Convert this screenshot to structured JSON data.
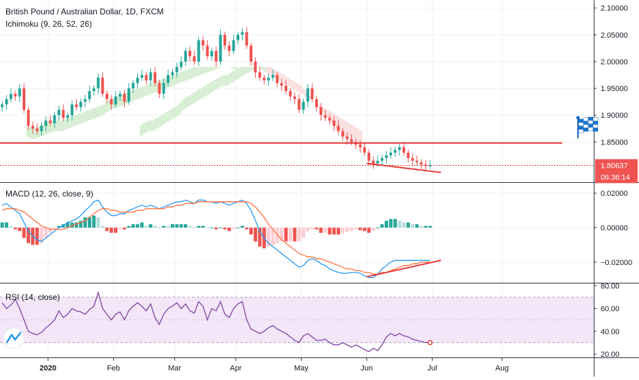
{
  "chart_data": [
    {
      "type": "candlestick",
      "title": "British Pound / Australian Dollar, 1D, FXCM",
      "indicator_label": "Ichimoku (9, 26, 52, 26)",
      "y_ticks": [
        "2.10000",
        "2.05000",
        "2.00000",
        "1.95000",
        "1.90000",
        "1.85000"
      ],
      "y_tick_values": [
        2.1,
        2.05,
        2.0,
        1.95,
        1.9,
        1.85
      ],
      "ylim": [
        1.775,
        2.115
      ],
      "last_price": "1.80637",
      "countdown": "06:36:14",
      "horizontal_line": 1.848,
      "trendline": [
        [
          84,
          1.81
        ],
        [
          101,
          1.793
        ]
      ],
      "x_range": [
        0,
        136
      ],
      "close": [
        1.92,
        1.93,
        1.94,
        1.935,
        1.95,
        1.91,
        1.88,
        1.875,
        1.87,
        1.88,
        1.89,
        1.885,
        1.9,
        1.91,
        1.895,
        1.9,
        1.92,
        1.915,
        1.925,
        1.93,
        1.945,
        1.95,
        1.97,
        1.94,
        1.93,
        1.92,
        1.935,
        1.94,
        1.925,
        1.95,
        1.96,
        1.97,
        1.975,
        1.965,
        1.98,
        1.96,
        1.94,
        1.96,
        1.975,
        1.98,
        1.99,
        2.0,
        2.02,
        2.01,
        2.0,
        2.04,
        2.03,
        2.01,
        2.02,
        2.0,
        2.05,
        2.03,
        2.02,
        2.04,
        2.05,
        2.055,
        2.03,
        2.0,
        1.98,
        1.97,
        1.965,
        1.97,
        1.975,
        1.96,
        1.955,
        1.945,
        1.935,
        1.93,
        1.91,
        1.925,
        1.95,
        1.93,
        1.915,
        1.9,
        1.895,
        1.89,
        1.88,
        1.87,
        1.86,
        1.855,
        1.85,
        1.845,
        1.84,
        1.83,
        1.815,
        1.81,
        1.815,
        1.82,
        1.825,
        1.83,
        1.835,
        1.84,
        1.83,
        1.82,
        1.815,
        1.812,
        1.808,
        1.805,
        1.806
      ],
      "cloud_upper": [
        1.88,
        1.885,
        1.89,
        1.89,
        1.895,
        1.9,
        1.905,
        1.91,
        1.915,
        1.92,
        1.93,
        1.935,
        1.94,
        1.945,
        1.95,
        1.955,
        1.96,
        1.965,
        1.97,
        1.975,
        1.975,
        1.98,
        1.985,
        1.99,
        1.99,
        1.99,
        1.99,
        1.99,
        1.985,
        1.98,
        1.975,
        1.97,
        1.965,
        1.96,
        1.955,
        1.95,
        1.945,
        1.94,
        1.935,
        1.93,
        1.925,
        1.92,
        1.915,
        1.91,
        1.905,
        1.9,
        1.895,
        1.89,
        1.885,
        1.88,
        1.875,
        1.87
      ],
      "cloud_lower": [
        1.86,
        1.865,
        1.87,
        1.87,
        1.875,
        1.88,
        1.885,
        1.89,
        1.895,
        1.9,
        1.91,
        1.915,
        1.92,
        1.925,
        1.93,
        1.935,
        1.94,
        1.945,
        1.95,
        1.955,
        1.955,
        1.96,
        1.965,
        1.97,
        1.975,
        1.98,
        1.985,
        1.99,
        1.99,
        1.99,
        1.99,
        1.985,
        1.98,
        1.975,
        1.97,
        1.965,
        1.96,
        1.955,
        1.945,
        1.935,
        1.925,
        1.915,
        1.905,
        1.895,
        1.885,
        1.875,
        1.87,
        1.86,
        1.855,
        1.85,
        1.845,
        1.84
      ],
      "cloud_start": 32
    },
    {
      "type": "macd",
      "title": "MACD (12, 26, close, 9)",
      "y_ticks": [
        "0.02000",
        "0.00000",
        "−0.02000"
      ],
      "y_tick_values": [
        0.02,
        0.0,
        -0.02
      ],
      "ylim": [
        -0.032,
        0.026
      ],
      "macd": [
        0.013,
        0.014,
        0.012,
        0.01,
        0.008,
        0.003,
        -0.002,
        -0.005,
        -0.007,
        -0.008,
        -0.006,
        -0.004,
        -0.002,
        0.0,
        0.001,
        0.003,
        0.004,
        0.005,
        0.007,
        0.01,
        0.012,
        0.015,
        0.016,
        0.012,
        0.009,
        0.007,
        0.007,
        0.008,
        0.008,
        0.01,
        0.011,
        0.012,
        0.013,
        0.012,
        0.013,
        0.012,
        0.011,
        0.012,
        0.013,
        0.014,
        0.015,
        0.015,
        0.016,
        0.015,
        0.014,
        0.016,
        0.016,
        0.015,
        0.015,
        0.014,
        0.015,
        0.014,
        0.013,
        0.014,
        0.015,
        0.016,
        0.014,
        0.01,
        0.004,
        -0.002,
        -0.006,
        -0.009,
        -0.011,
        -0.013,
        -0.015,
        -0.017,
        -0.019,
        -0.021,
        -0.023,
        -0.022,
        -0.019,
        -0.018,
        -0.019,
        -0.021,
        -0.022,
        -0.024,
        -0.025,
        -0.026,
        -0.0265,
        -0.0265,
        -0.026,
        -0.026,
        -0.0265,
        -0.028,
        -0.029,
        -0.029,
        -0.027,
        -0.024,
        -0.022,
        -0.02,
        -0.019,
        -0.019,
        -0.019,
        -0.019,
        -0.019,
        -0.019,
        -0.019,
        -0.019,
        -0.019
      ],
      "signal": [
        0.01,
        0.011,
        0.011,
        0.011,
        0.01,
        0.009,
        0.007,
        0.005,
        0.003,
        0.001,
        0.0,
        -0.001,
        -0.001,
        -0.001,
        -0.001,
        0.0,
        0.001,
        0.002,
        0.003,
        0.004,
        0.006,
        0.008,
        0.01,
        0.011,
        0.011,
        0.01,
        0.01,
        0.009,
        0.009,
        0.009,
        0.009,
        0.01,
        0.01,
        0.011,
        0.011,
        0.011,
        0.011,
        0.011,
        0.012,
        0.012,
        0.013,
        0.013,
        0.014,
        0.014,
        0.014,
        0.015,
        0.015,
        0.015,
        0.015,
        0.015,
        0.015,
        0.015,
        0.015,
        0.015,
        0.015,
        0.015,
        0.015,
        0.014,
        0.012,
        0.009,
        0.006,
        0.002,
        -0.001,
        -0.004,
        -0.007,
        -0.009,
        -0.011,
        -0.013,
        -0.015,
        -0.016,
        -0.017,
        -0.017,
        -0.018,
        -0.018,
        -0.019,
        -0.02,
        -0.021,
        -0.022,
        -0.023,
        -0.024,
        -0.024,
        -0.025,
        -0.025,
        -0.026,
        -0.026,
        -0.027,
        -0.027,
        -0.026,
        -0.026,
        -0.025,
        -0.024,
        -0.023,
        -0.022,
        -0.022,
        -0.021,
        -0.021,
        -0.02,
        -0.02,
        -0.02
      ],
      "trendline": [
        [
          84,
          -0.0285
        ],
        [
          101,
          -0.019
        ]
      ]
    },
    {
      "type": "rsi",
      "title": "RSI (14, close)",
      "y_ticks": [
        "80.00",
        "60.00",
        "40.00",
        "20.00"
      ],
      "y_tick_values": [
        80,
        60,
        40,
        20
      ],
      "ylim": [
        17,
        82
      ],
      "band": [
        30,
        70
      ],
      "rsi": [
        65,
        60,
        63,
        68,
        60,
        50,
        40,
        38,
        37,
        39,
        43,
        46,
        50,
        58,
        52,
        55,
        60,
        58,
        57,
        55,
        59,
        62,
        74,
        60,
        55,
        50,
        55,
        57,
        50,
        58,
        62,
        65,
        62,
        58,
        64,
        52,
        46,
        55,
        60,
        62,
        65,
        60,
        64,
        58,
        56,
        66,
        62,
        50,
        60,
        58,
        66,
        55,
        52,
        60,
        64,
        66,
        50,
        42,
        40,
        38,
        40,
        43,
        45,
        42,
        40,
        38,
        35,
        32,
        30,
        36,
        38,
        35,
        32,
        32,
        33,
        30,
        28,
        28,
        30,
        28,
        26,
        28,
        26,
        24,
        22,
        25,
        23,
        28,
        35,
        38,
        36,
        38,
        36,
        35,
        33,
        32,
        31,
        30,
        30
      ]
    }
  ],
  "time_axis": [
    {
      "label": "2020",
      "x": 11
    },
    {
      "label": "Feb",
      "x": 26
    },
    {
      "label": "Mar",
      "x": 40
    },
    {
      "label": "Apr",
      "x": 54
    },
    {
      "label": "May",
      "x": 69
    },
    {
      "label": "Jun",
      "x": 84
    },
    {
      "label": "Jul",
      "x": 99
    },
    {
      "label": "Aug",
      "x": 115
    }
  ],
  "colors": {
    "up": "#26a69a",
    "down": "#ef5350",
    "hline": "#e53935",
    "macd_line": "#2196f3",
    "signal_line": "#ff6d3a",
    "rsi_line": "#7e3fa0",
    "rsi_band": "#f2e6f8",
    "cloud_green": "#d8efd5",
    "cloud_red": "#fbe0e0",
    "price_badge": "#ef5350",
    "grid": "#eef0f3"
  }
}
